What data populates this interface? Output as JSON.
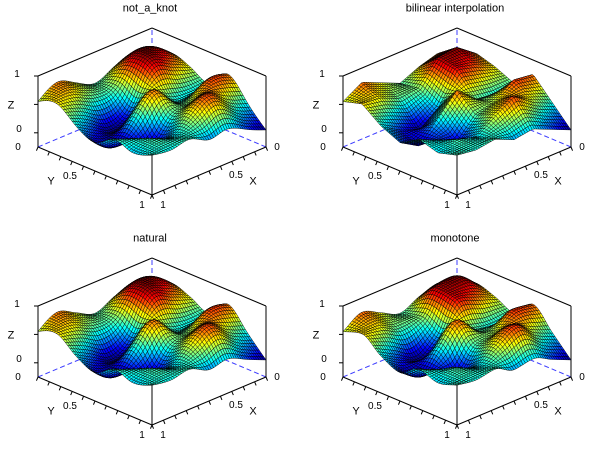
{
  "window": {
    "background": "#ffffff"
  },
  "axes": {
    "x": {
      "label": "X",
      "tick_0": "0",
      "tick_05": "0.5",
      "tick_1": "1",
      "minor_tick_step": 0.1,
      "lim": [
        0,
        1
      ]
    },
    "y": {
      "label": "Y",
      "tick_0": "0",
      "tick_05": "0.5",
      "tick_1": "1",
      "minor_tick_step": 0.1,
      "lim": [
        0,
        1
      ]
    },
    "z": {
      "label": "Z",
      "tick_0": "0",
      "tick_1": "1",
      "minor_tick": 0.5,
      "lim": [
        -0.25,
        1
      ]
    }
  },
  "chart_data": {
    "type": "surface",
    "layout": "2x2 subplots comparing 2-D interpolation methods of the same coarse random grid",
    "colormap": "jet",
    "mesh_line_color": "#000000",
    "box_edge_color": "#000000",
    "hidden_edge_color": "#3c3cff",
    "hidden_edge_style": "dashed",
    "xlim": [
      0,
      1
    ],
    "ylim": [
      0,
      1
    ],
    "zlim": [
      -0.25,
      1
    ],
    "grid_x": [
      0,
      0.1667,
      0.3333,
      0.5,
      0.6667,
      0.8333,
      1
    ],
    "grid_y": [
      0,
      0.1667,
      0.3333,
      0.5,
      0.6667,
      0.8333,
      1
    ],
    "values": [
      [
        0.5,
        0.7,
        0.6,
        0.45,
        0.75,
        0.4,
        0.05
      ],
      [
        0.7,
        0.95,
        0.75,
        0.4,
        0.8,
        0.55,
        0.2
      ],
      [
        0.6,
        0.9,
        0.85,
        0.45,
        0.55,
        0.8,
        0.35
      ],
      [
        0.45,
        0.5,
        0.3,
        0.75,
        0.45,
        0.6,
        0.3
      ],
      [
        0.6,
        0.45,
        0.05,
        0.4,
        0.1,
        0.35,
        0.45
      ],
      [
        0.75,
        0.6,
        0.2,
        0.05,
        0.3,
        0.45,
        0.4
      ],
      [
        0.55,
        0.65,
        0.4,
        0.25,
        0.45,
        0.35,
        0.45
      ]
    ],
    "mesh_resolution": 50,
    "panels": [
      {
        "title": "not_a_knot",
        "interp": "cubic",
        "tension": 1.2
      },
      {
        "title": "bilinear interpolation",
        "interp": "linear",
        "tension": 1.0
      },
      {
        "title": "natural",
        "interp": "cubic",
        "tension": 1.05
      },
      {
        "title": "monotone",
        "interp": "monotone",
        "tension": 1.0
      }
    ]
  }
}
